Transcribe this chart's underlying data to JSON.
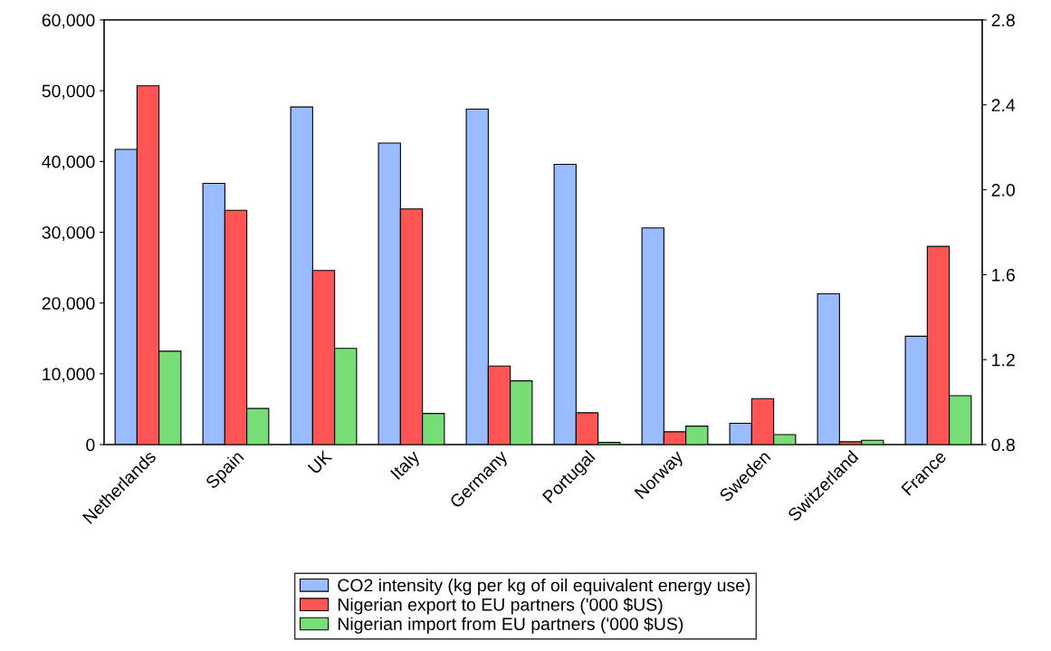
{
  "chart_data": {
    "type": "bar",
    "categories": [
      "Netherlands",
      "Spain",
      "UK",
      "Italy",
      "Germany",
      "Portugal",
      "Norway",
      "Sweden",
      "Switzerland",
      "France"
    ],
    "series": [
      {
        "name": "CO2 intensity (kg per kg of oil equivalent energy use)",
        "color": "#99bbff",
        "axis": "y2",
        "values": [
          2.19,
          2.03,
          2.39,
          2.22,
          2.38,
          2.12,
          1.82,
          0.9,
          1.51,
          1.31
        ]
      },
      {
        "name": "Nigerian export to EU partners ('000 $US)",
        "color": "#ff5555",
        "values": [
          50700,
          33100,
          24600,
          33300,
          11100,
          4500,
          1800,
          6500,
          400,
          28000
        ]
      },
      {
        "name": "Nigerian import from EU partners ('000 $US)",
        "color": "#77dd77",
        "values": [
          13200,
          5100,
          13600,
          4400,
          9000,
          300,
          2600,
          1400,
          600,
          6900
        ]
      }
    ],
    "ylim": [
      0,
      60000
    ],
    "yticks": [
      {
        "value": 0,
        "label": "0"
      },
      {
        "value": 10000,
        "label": "10,000"
      },
      {
        "value": 20000,
        "label": "20,000"
      },
      {
        "value": 30000,
        "label": "30,000"
      },
      {
        "value": 40000,
        "label": "40,000"
      },
      {
        "value": 50000,
        "label": "50,000"
      },
      {
        "value": 60000,
        "label": "60,000"
      }
    ],
    "y2lim": [
      0.8,
      2.8
    ],
    "y2ticks": [
      {
        "value": 0.8,
        "label": "0.8"
      },
      {
        "value": 1.2,
        "label": "1.2"
      },
      {
        "value": 1.6,
        "label": "1.6"
      },
      {
        "value": 2.0,
        "label": "2.0"
      },
      {
        "value": 2.4,
        "label": "2.4"
      },
      {
        "value": 2.8,
        "label": "2.8"
      }
    ],
    "legend": "bottom",
    "grid": false
  }
}
